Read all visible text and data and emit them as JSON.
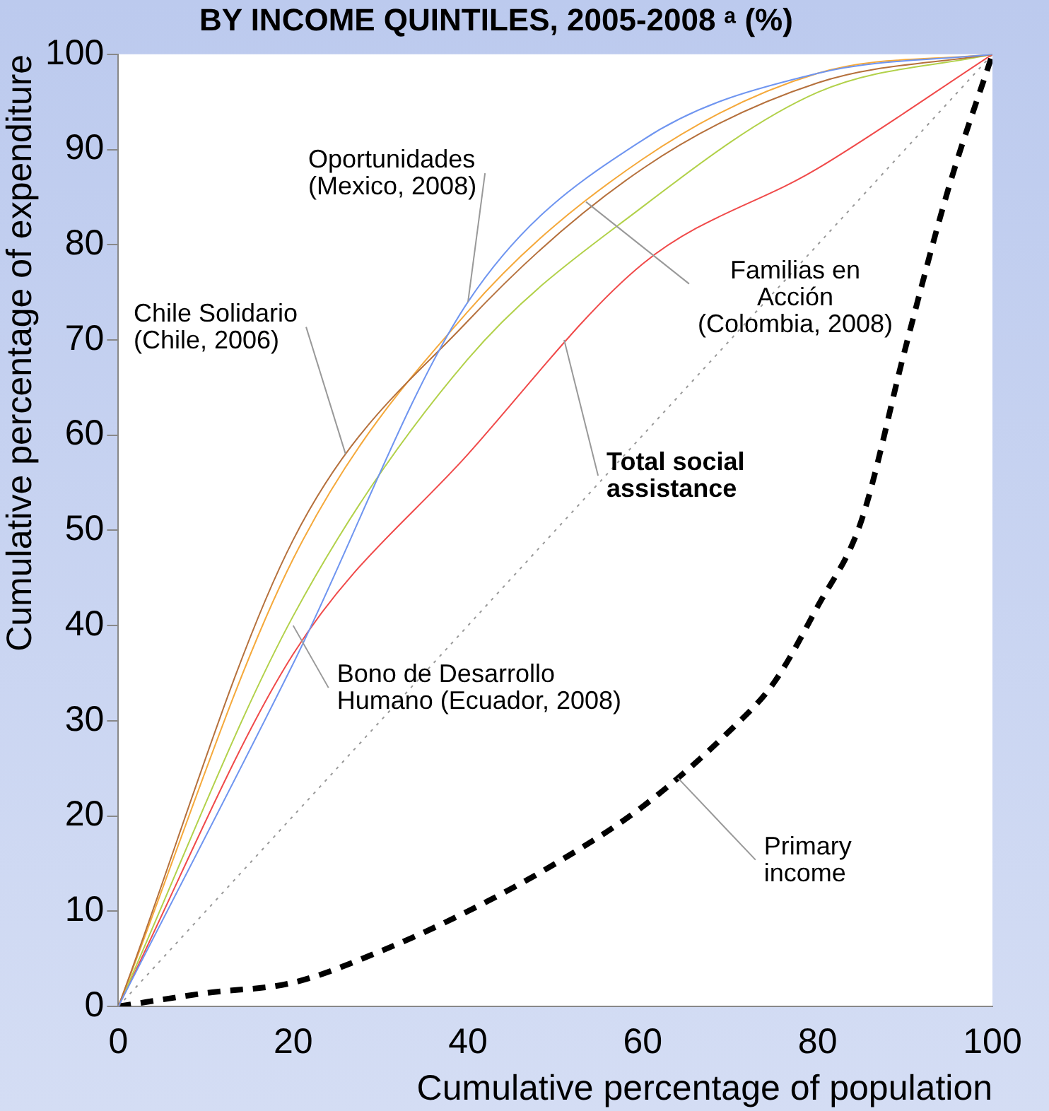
{
  "chart_data": {
    "type": "line",
    "title": "BY INCOME QUINTILES, 2005-2008 ᵃ (%)",
    "xlabel": "Cumulative percentage of population",
    "ylabel": "Cumulative percentage of expenditure",
    "xlim": [
      0,
      100
    ],
    "xticks": [
      0,
      20,
      40,
      60,
      80,
      100
    ],
    "ylim": [
      0,
      100
    ],
    "yticks": [
      0,
      10,
      20,
      30,
      40,
      50,
      60,
      70,
      80,
      90,
      100
    ],
    "grid": false,
    "legend": false,
    "marker": "none",
    "series": [
      {
        "color": "#6f95f0",
        "x": [
          0,
          20,
          40,
          60,
          80,
          100
        ],
        "values": [
          0,
          36,
          74,
          91,
          98,
          100
        ]
      },
      {
        "color": "#b5703c",
        "x": [
          0,
          20,
          40,
          60,
          80,
          100
        ],
        "values": [
          0,
          49,
          72,
          88,
          97,
          100
        ]
      },
      {
        "color": "#f5a93b",
        "x": [
          0,
          20,
          40,
          60,
          80,
          100
        ],
        "values": [
          0,
          47,
          73,
          89,
          98,
          100
        ]
      },
      {
        "color": "#b2d14a",
        "x": [
          0,
          20,
          40,
          60,
          80,
          100
        ],
        "values": [
          0,
          41,
          68,
          84,
          96,
          100
        ]
      },
      {
        "color": "#f04a4a",
        "x": [
          0,
          20,
          40,
          60,
          80,
          100
        ],
        "values": [
          0,
          37,
          58,
          78,
          88,
          100
        ]
      },
      {
        "color": "#999999",
        "line_style": "dotted",
        "x": [
          0,
          100
        ],
        "values": [
          0,
          100
        ]
      },
      {
        "color": "#000000",
        "line_style": "dashed",
        "x": [
          0,
          10,
          20,
          30,
          40,
          50,
          60,
          70,
          75,
          80,
          85,
          90,
          95,
          100
        ],
        "values": [
          0,
          1.4,
          2.5,
          5.8,
          10,
          15,
          21,
          29,
          34,
          42,
          51,
          69,
          86,
          100
        ]
      }
    ],
    "annotations": [
      {
        "text": "Oportunidades\n(Mexico, 2008)",
        "x": 40,
        "y": 74
      },
      {
        "text": "Chile Solidario\n(Chile, 2006)",
        "x": 26,
        "y": 58
      },
      {
        "text": "Familias en\nAcción\n(Colombia, 2008)",
        "x": 53.5,
        "y": 84.5
      },
      {
        "text": "Total social\nassistance",
        "x": 51,
        "y": 70
      },
      {
        "text": "Bono de Desarrollo\nHumano (Ecuador, 2008)",
        "x": 20,
        "y": 40
      },
      {
        "text": "Primary\nincome",
        "x": 64,
        "y": 24
      }
    ]
  }
}
